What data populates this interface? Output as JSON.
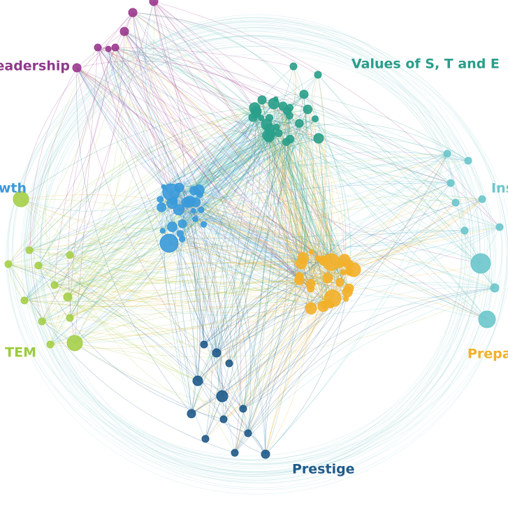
{
  "labels": {
    "leadership": "eadership",
    "values": "Values of S, T and E",
    "growth": "wth",
    "inspiration": "Ins",
    "stem": "TEM",
    "preparation": "Prepa",
    "prestige": "Prestige"
  }
}
